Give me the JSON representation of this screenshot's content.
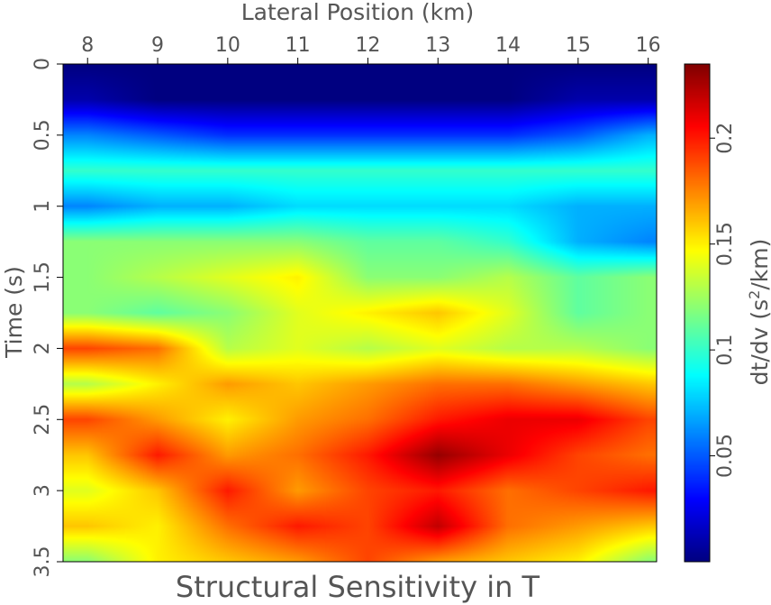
{
  "chart_data": {
    "type": "heatmap",
    "title": "Structural Sensitivity in T",
    "xlabel": "Lateral Position (km)",
    "ylabel": "Time (s)",
    "xlim": [
      7.65,
      16.12
    ],
    "ylim": [
      0,
      3.5
    ],
    "x_ticks": [
      "8",
      "9",
      "10",
      "11",
      "12",
      "13",
      "14",
      "15",
      "16"
    ],
    "y_ticks": [
      "0",
      "0.5",
      "1",
      "1.5",
      "2",
      "2.5",
      "3",
      "3.5"
    ],
    "x_axis_position": "top",
    "y_axis_inverted": true,
    "grid": false,
    "colormap": "jet",
    "colorbar": {
      "label": "dt/dv (s",
      "label_sup": "2",
      "label_tail": "/km)",
      "ticks": [
        "0.05",
        "0.1",
        "0.15",
        "0.2"
      ],
      "tick_values": [
        0.05,
        0.1,
        0.15,
        0.2
      ],
      "range": [
        0.0,
        0.235
      ]
    },
    "grid_data": {
      "x": [
        8,
        9,
        10,
        11,
        12,
        13,
        14,
        15,
        16
      ],
      "y": [
        0,
        0.25,
        0.5,
        0.75,
        1.0,
        1.25,
        1.5,
        1.75,
        2.0,
        2.25,
        2.5,
        2.75,
        3.0,
        3.25,
        3.5
      ],
      "values": [
        [
          0.0,
          0.0,
          0.0,
          0.0,
          0.0,
          0.0,
          0.0,
          0.0,
          0.0
        ],
        [
          0.01,
          0.0,
          0.0,
          0.0,
          0.0,
          0.0,
          0.0,
          0.01,
          0.01
        ],
        [
          0.06,
          0.05,
          0.04,
          0.04,
          0.04,
          0.04,
          0.04,
          0.05,
          0.07
        ],
        [
          0.1,
          0.1,
          0.1,
          0.1,
          0.1,
          0.1,
          0.1,
          0.1,
          0.1
        ],
        [
          0.06,
          0.07,
          0.07,
          0.08,
          0.08,
          0.08,
          0.08,
          0.07,
          0.07
        ],
        [
          0.12,
          0.12,
          0.12,
          0.12,
          0.11,
          0.11,
          0.1,
          0.07,
          0.06
        ],
        [
          0.12,
          0.13,
          0.14,
          0.15,
          0.12,
          0.12,
          0.13,
          0.11,
          0.12
        ],
        [
          0.12,
          0.11,
          0.12,
          0.14,
          0.15,
          0.16,
          0.14,
          0.11,
          0.12
        ],
        [
          0.19,
          0.18,
          0.13,
          0.14,
          0.13,
          0.14,
          0.13,
          0.13,
          0.12
        ],
        [
          0.13,
          0.15,
          0.17,
          0.16,
          0.17,
          0.18,
          0.18,
          0.17,
          0.16
        ],
        [
          0.19,
          0.17,
          0.15,
          0.17,
          0.18,
          0.2,
          0.21,
          0.21,
          0.19
        ],
        [
          0.16,
          0.2,
          0.17,
          0.18,
          0.2,
          0.23,
          0.21,
          0.19,
          0.18
        ],
        [
          0.14,
          0.16,
          0.2,
          0.17,
          0.19,
          0.2,
          0.18,
          0.19,
          0.2
        ],
        [
          0.16,
          0.15,
          0.18,
          0.2,
          0.19,
          0.22,
          0.18,
          0.17,
          0.16
        ],
        [
          0.12,
          0.15,
          0.16,
          0.17,
          0.19,
          0.17,
          0.16,
          0.15,
          0.12
        ]
      ]
    }
  }
}
